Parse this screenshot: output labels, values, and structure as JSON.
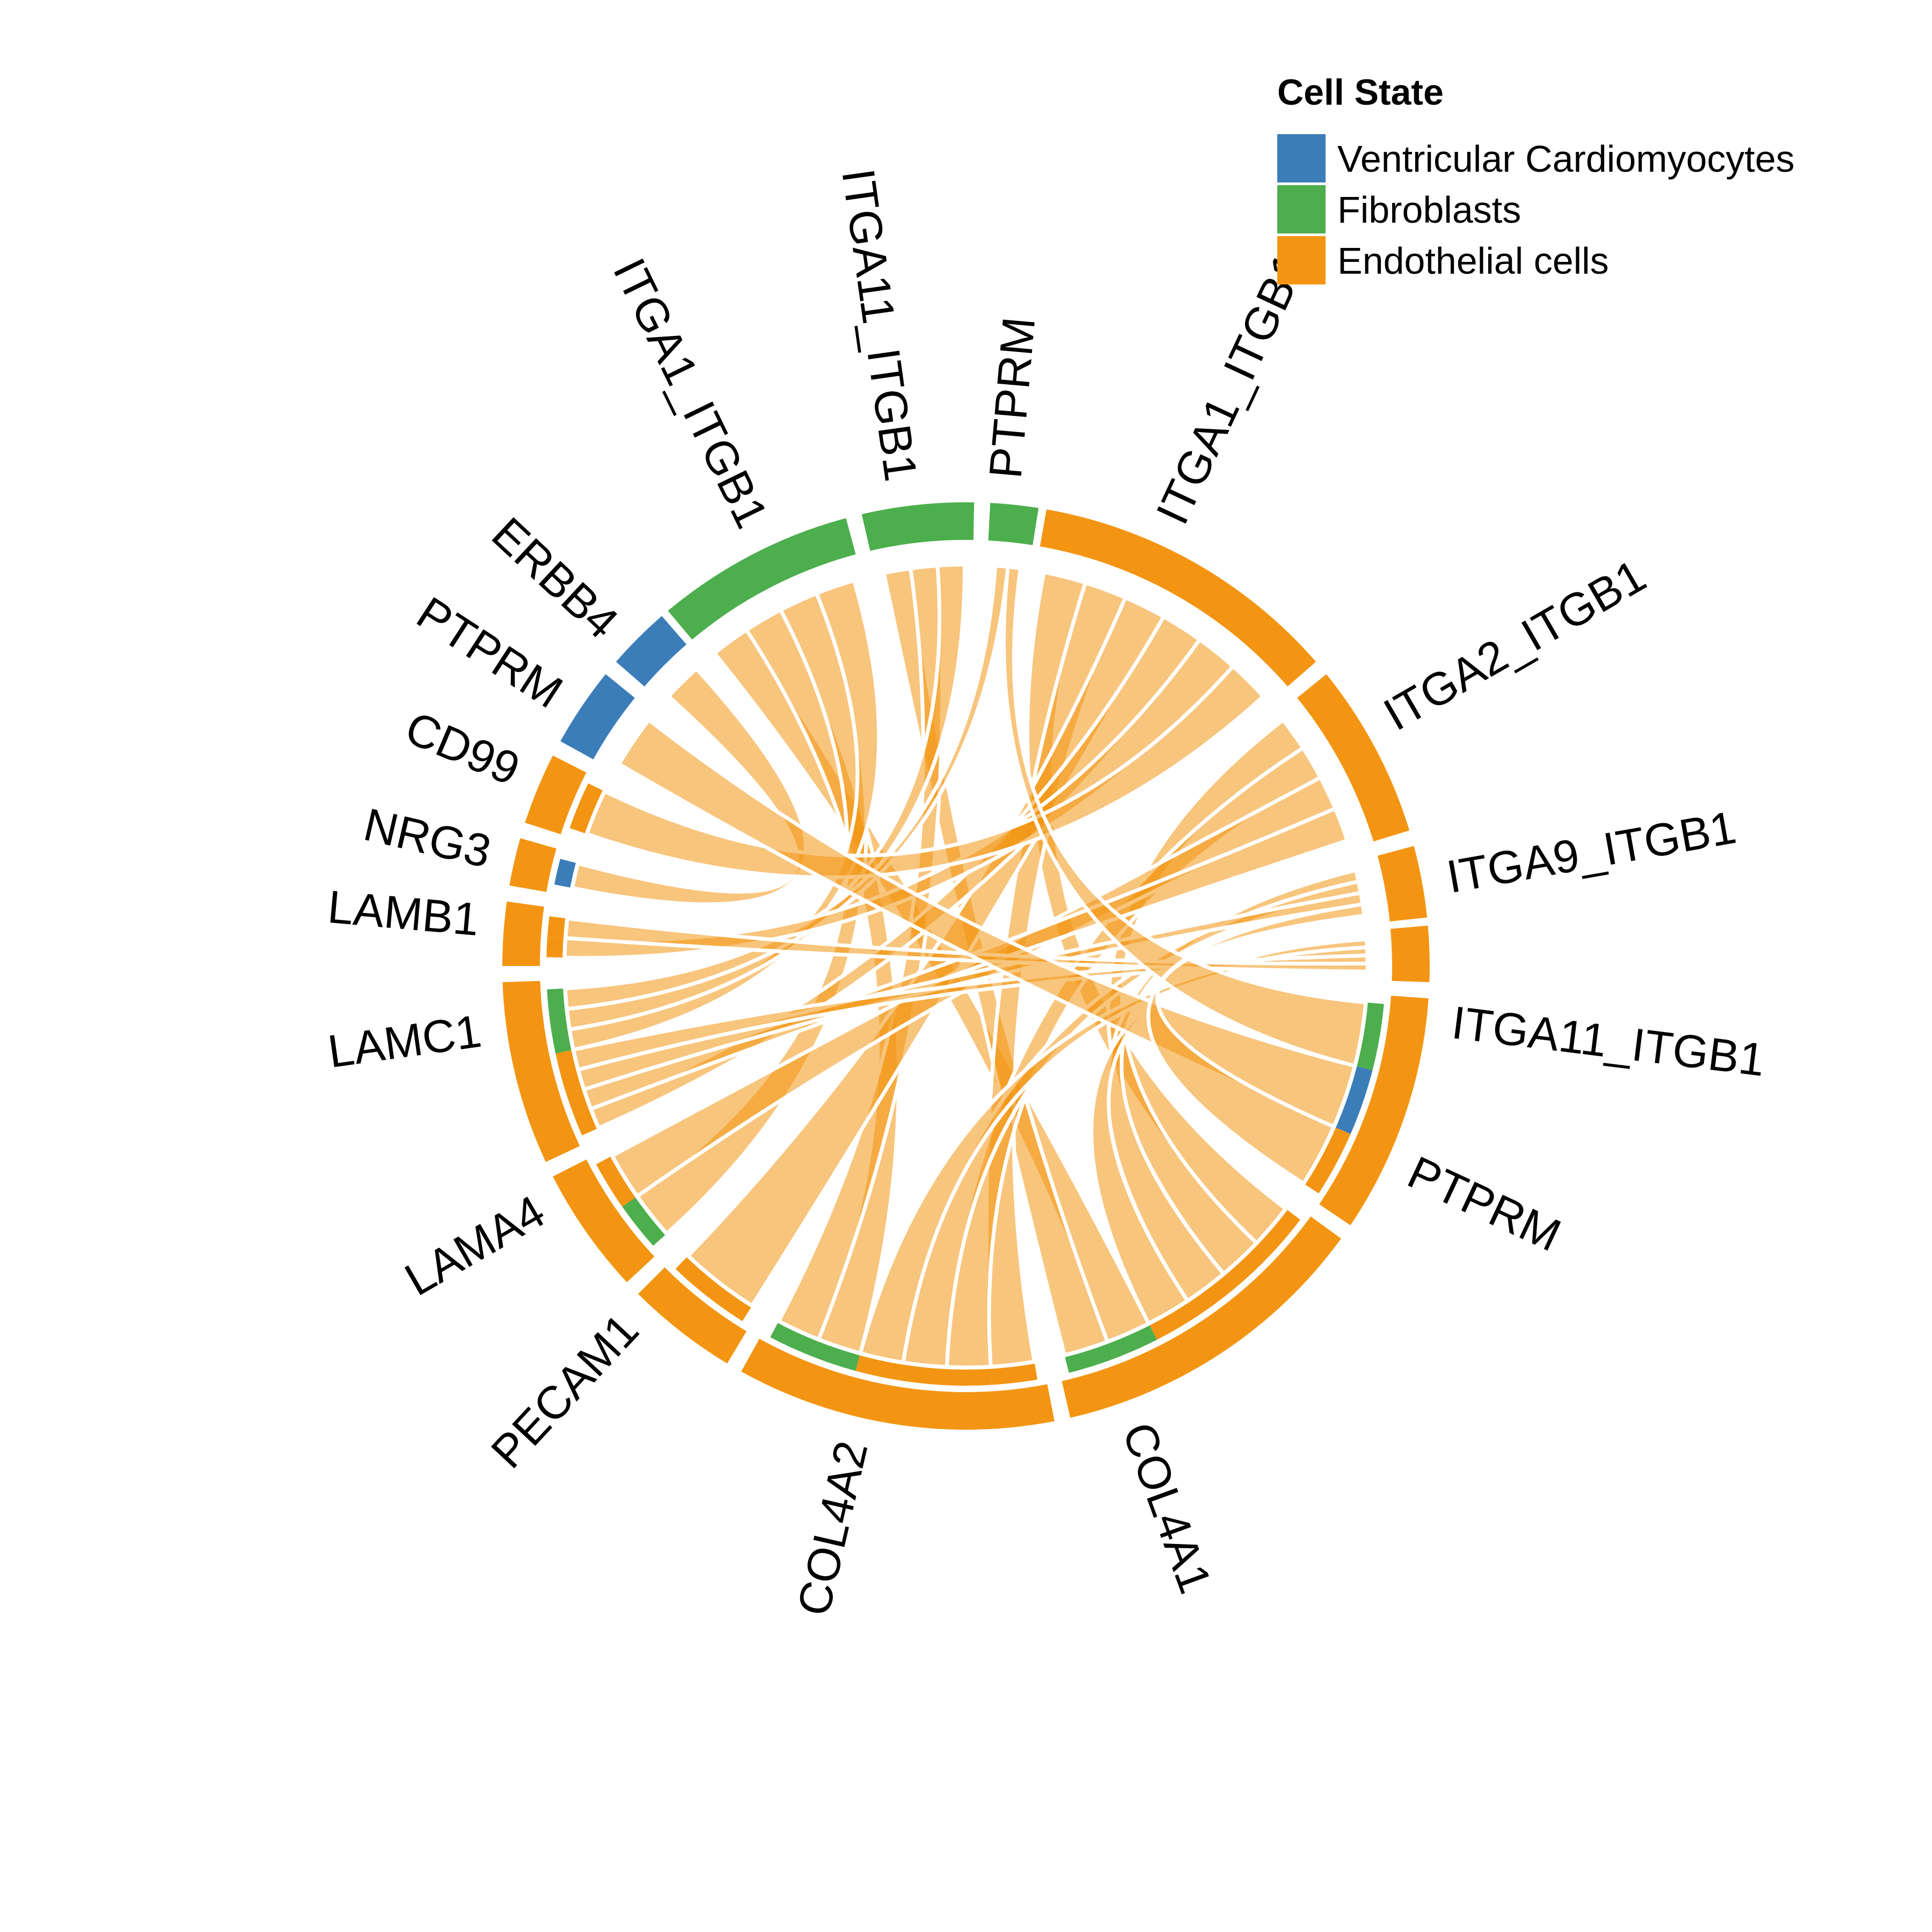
{
  "legend": {
    "title": "Cell State",
    "items": [
      {
        "label": "Ventricular Cardiomyocytes",
        "color": "#3B7DB8"
      },
      {
        "label": "Fibroblasts",
        "color": "#4CAE4C"
      },
      {
        "label": "Endothelial cells",
        "color": "#F39512"
      }
    ]
  },
  "chart_data": {
    "type": "chord",
    "title": "",
    "sectors": [
      {
        "label": "PTPRM",
        "cell_state": "Endothelial cells",
        "role": "receptor"
      },
      {
        "label": "COL4A1",
        "cell_state": "Endothelial cells",
        "role": "ligand"
      },
      {
        "label": "COL4A2",
        "cell_state": "Endothelial cells",
        "role": "ligand"
      },
      {
        "label": "PECAM1",
        "cell_state": "Endothelial cells",
        "role": "ligand"
      },
      {
        "label": "LAMA4",
        "cell_state": "Endothelial cells",
        "role": "ligand"
      },
      {
        "label": "LAMC1",
        "cell_state": "Endothelial cells",
        "role": "ligand"
      },
      {
        "label": "LAMB1",
        "cell_state": "Endothelial cells",
        "role": "ligand"
      },
      {
        "label": "NRG3",
        "cell_state": "Endothelial cells",
        "role": "ligand"
      },
      {
        "label": "CD99",
        "cell_state": "Endothelial cells",
        "role": "ligand"
      },
      {
        "label": "PTPRM",
        "cell_state": "Ventricular Cardiomyocytes",
        "role": "receptor"
      },
      {
        "label": "ERBB4",
        "cell_state": "Ventricular Cardiomyocytes",
        "role": "receptor"
      },
      {
        "label": "ITGA1_ITGB1",
        "cell_state": "Fibroblasts",
        "role": "receptor"
      },
      {
        "label": "ITGA11_ITGB1",
        "cell_state": "Fibroblasts",
        "role": "receptor"
      },
      {
        "label": "PTPRM",
        "cell_state": "Fibroblasts",
        "role": "receptor"
      },
      {
        "label": "ITGA1_ITGB1",
        "cell_state": "Endothelial cells",
        "role": "receptor"
      },
      {
        "label": "ITGA2_ITGB1",
        "cell_state": "Endothelial cells",
        "role": "receptor"
      },
      {
        "label": "ITGA9_ITGB1",
        "cell_state": "Endothelial cells",
        "role": "receptor"
      },
      {
        "label": "ITGA11_ITGB1",
        "cell_state": "Endothelial cells",
        "role": "receptor"
      }
    ],
    "links": [
      {
        "source": "COL4A1",
        "target": "ITGA1_ITGB1 (Endothelial cells)",
        "target_cell_state": "Endothelial cells"
      },
      {
        "source": "COL4A1",
        "target": "ITGA2_ITGB1 (Endothelial cells)",
        "target_cell_state": "Endothelial cells"
      },
      {
        "source": "COL4A1",
        "target": "ITGA9_ITGB1 (Endothelial cells)",
        "target_cell_state": "Endothelial cells"
      },
      {
        "source": "COL4A1",
        "target": "ITGA11_ITGB1 (Endothelial cells)",
        "target_cell_state": "Endothelial cells"
      },
      {
        "source": "COL4A1",
        "target": "ITGA1_ITGB1 (Fibroblasts)",
        "target_cell_state": "Fibroblasts"
      },
      {
        "source": "COL4A1",
        "target": "ITGA11_ITGB1 (Fibroblasts)",
        "target_cell_state": "Fibroblasts"
      },
      {
        "source": "COL4A2",
        "target": "ITGA1_ITGB1 (Endothelial cells)",
        "target_cell_state": "Endothelial cells"
      },
      {
        "source": "COL4A2",
        "target": "ITGA2_ITGB1 (Endothelial cells)",
        "target_cell_state": "Endothelial cells"
      },
      {
        "source": "COL4A2",
        "target": "ITGA9_ITGB1 (Endothelial cells)",
        "target_cell_state": "Endothelial cells"
      },
      {
        "source": "COL4A2",
        "target": "ITGA11_ITGB1 (Endothelial cells)",
        "target_cell_state": "Endothelial cells"
      },
      {
        "source": "COL4A2",
        "target": "ITGA1_ITGB1 (Fibroblasts)",
        "target_cell_state": "Fibroblasts"
      },
      {
        "source": "COL4A2",
        "target": "ITGA11_ITGB1 (Fibroblasts)",
        "target_cell_state": "Fibroblasts"
      },
      {
        "source": "PECAM1",
        "target": "ITGA1_ITGB1 (Endothelial cells)",
        "target_cell_state": "Endothelial cells"
      },
      {
        "source": "LAMA4",
        "target": "ITGA1_ITGB1 (Fibroblasts)",
        "target_cell_state": "Fibroblasts"
      },
      {
        "source": "LAMA4",
        "target": "ITGA2_ITGB1 (Endothelial cells)",
        "target_cell_state": "Endothelial cells"
      },
      {
        "source": "LAMC1",
        "target": "ITGA1_ITGB1 (Endothelial cells)",
        "target_cell_state": "Endothelial cells"
      },
      {
        "source": "LAMC1",
        "target": "ITGA2_ITGB1 (Endothelial cells)",
        "target_cell_state": "Endothelial cells"
      },
      {
        "source": "LAMC1",
        "target": "ITGA9_ITGB1 (Endothelial cells)",
        "target_cell_state": "Endothelial cells"
      },
      {
        "source": "LAMC1",
        "target": "ITGA11_ITGB1 (Endothelial cells)",
        "target_cell_state": "Endothelial cells"
      },
      {
        "source": "LAMC1",
        "target": "ITGA1_ITGB1 (Fibroblasts)",
        "target_cell_state": "Fibroblasts"
      },
      {
        "source": "LAMC1",
        "target": "ITGA11_ITGB1 (Fibroblasts)",
        "target_cell_state": "Fibroblasts"
      },
      {
        "source": "LAMC1",
        "target": "PTPRM (Fibroblasts)",
        "target_cell_state": "Fibroblasts"
      },
      {
        "source": "LAMB1",
        "target": "ITGA1_ITGB1 (Endothelial cells)",
        "target_cell_state": "Endothelial cells"
      },
      {
        "source": "LAMB1",
        "target": "ITGA11_ITGB1 (Endothelial cells)",
        "target_cell_state": "Endothelial cells"
      },
      {
        "source": "NRG3",
        "target": "ERBB4 (Ventricular Cardiomyocytes)",
        "target_cell_state": "Ventricular Cardiomyocytes"
      },
      {
        "source": "CD99",
        "target": "ITGA1_ITGB1 (Endothelial cells)",
        "target_cell_state": "Endothelial cells"
      },
      {
        "source": "PTPRM (Endothelial cells)",
        "target": "PTPRM (Fibroblasts)",
        "target_cell_state": "Fibroblasts"
      },
      {
        "source": "PTPRM (Endothelial cells)",
        "target": "PTPRM (Ventricular Cardiomyocytes)",
        "target_cell_state": "Ventricular Cardiomyocytes"
      },
      {
        "source": "PTPRM (Endothelial cells)",
        "target": "ITGA9_ITGB1 (Endothelial cells)",
        "target_cell_state": "Endothelial cells"
      }
    ]
  }
}
